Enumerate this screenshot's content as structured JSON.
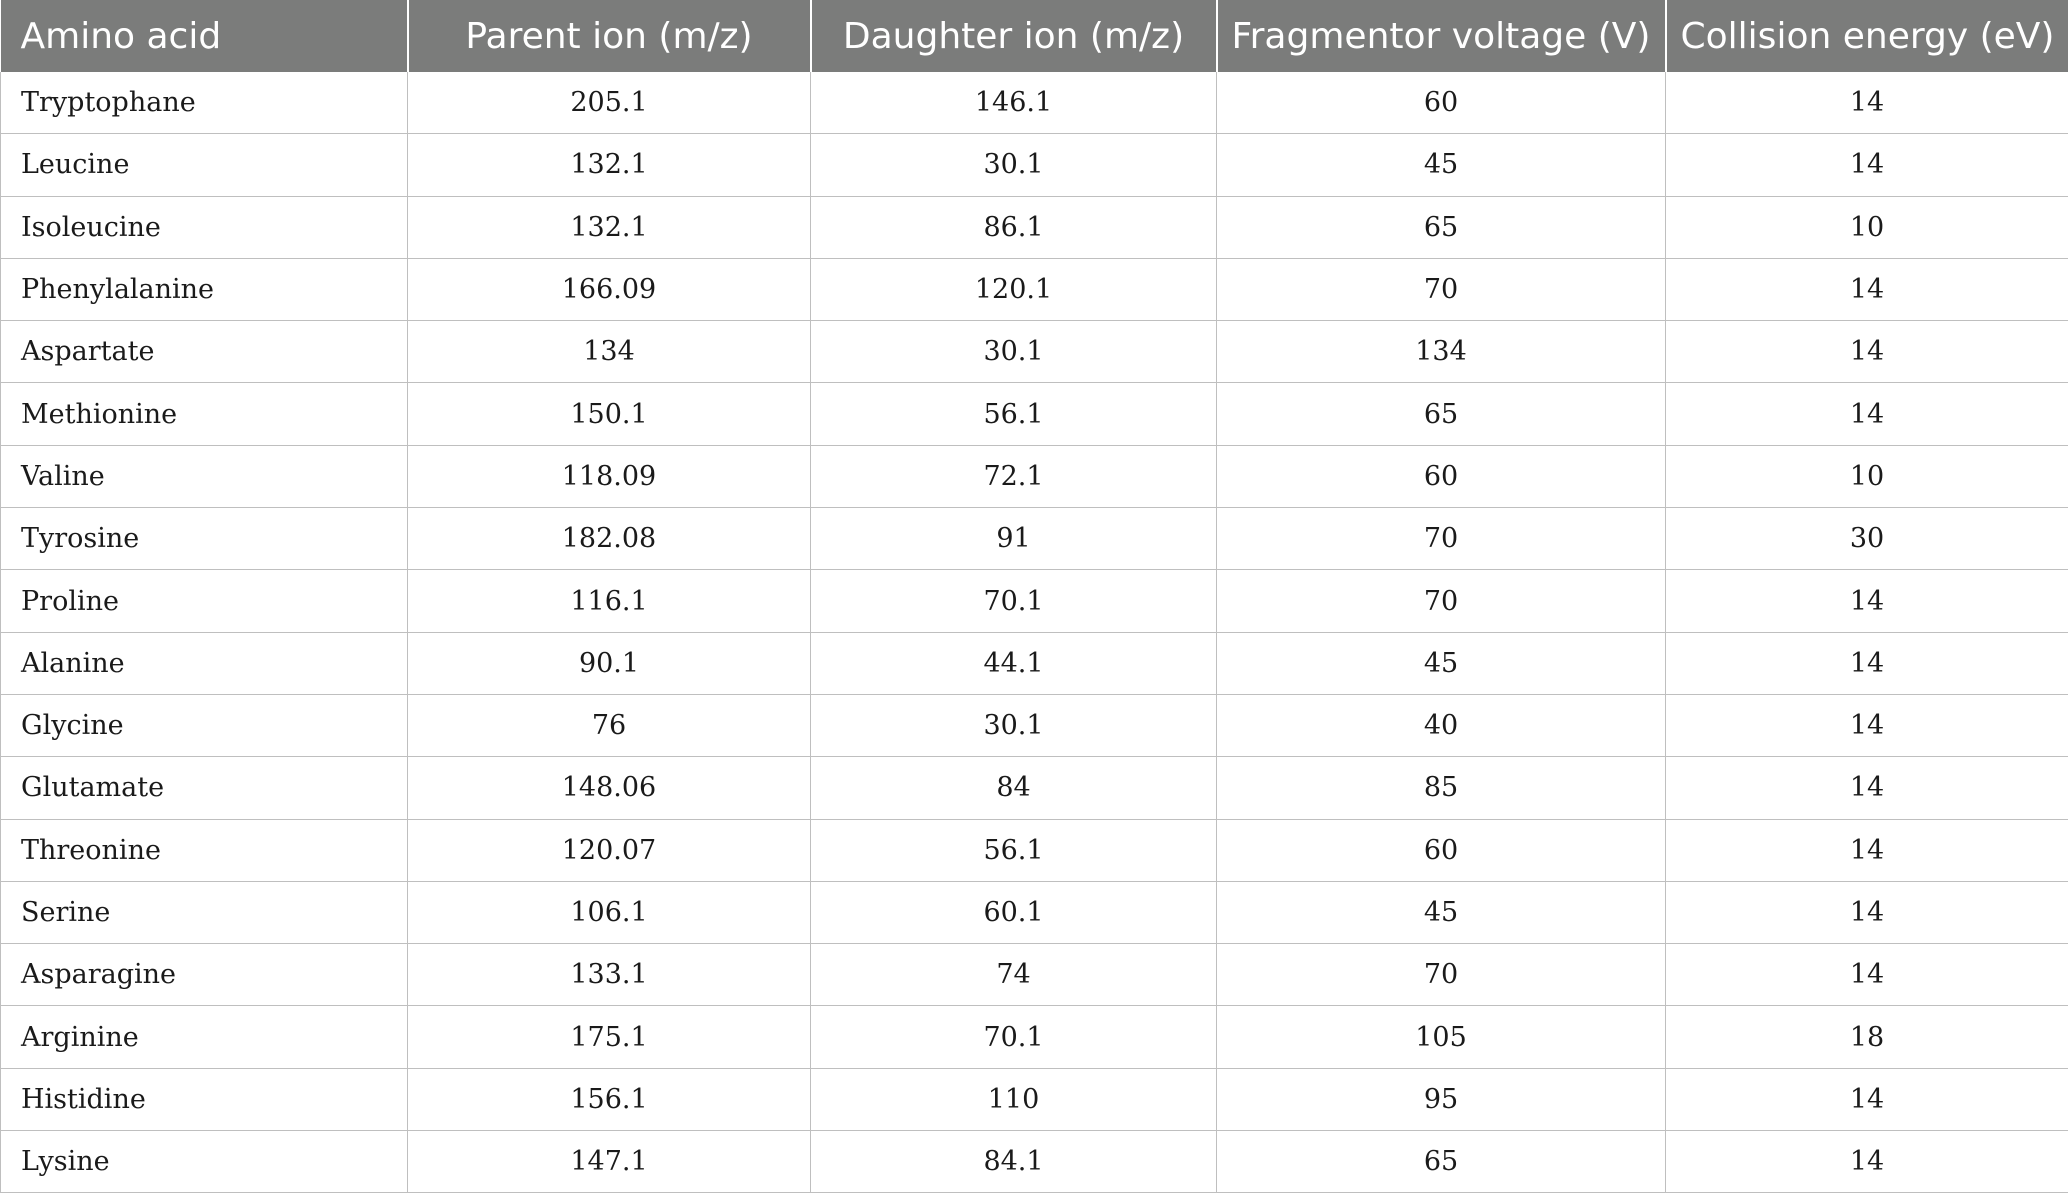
{
  "table": {
    "headers": [
      "Amino acid",
      "Parent ion (m/z)",
      "Daughter ion (m/z)",
      "Fragmentor voltage (V)",
      "Collision energy (eV)"
    ],
    "rows": [
      [
        "Tryptophane",
        "205.1",
        "146.1",
        "60",
        "14"
      ],
      [
        "Leucine",
        "132.1",
        "30.1",
        "45",
        "14"
      ],
      [
        "Isoleucine",
        "132.1",
        "86.1",
        "65",
        "10"
      ],
      [
        "Phenylalanine",
        "166.09",
        "120.1",
        "70",
        "14"
      ],
      [
        "Aspartate",
        "134",
        "30.1",
        "134",
        "14"
      ],
      [
        "Methionine",
        "150.1",
        "56.1",
        "65",
        "14"
      ],
      [
        "Valine",
        "118.09",
        "72.1",
        "60",
        "10"
      ],
      [
        "Tyrosine",
        "182.08",
        "91",
        "70",
        "30"
      ],
      [
        "Proline",
        "116.1",
        "70.1",
        "70",
        "14"
      ],
      [
        "Alanine",
        "90.1",
        "44.1",
        "45",
        "14"
      ],
      [
        "Glycine",
        "76",
        "30.1",
        "40",
        "14"
      ],
      [
        "Glutamate",
        "148.06",
        "84",
        "85",
        "14"
      ],
      [
        "Threonine",
        "120.07",
        "56.1",
        "60",
        "14"
      ],
      [
        "Serine",
        "106.1",
        "60.1",
        "45",
        "14"
      ],
      [
        "Asparagine",
        "133.1",
        "74",
        "70",
        "14"
      ],
      [
        "Arginine",
        "175.1",
        "70.1",
        "105",
        "18"
      ],
      [
        "Histidine",
        "156.1",
        "110",
        "95",
        "14"
      ],
      [
        "Lysine",
        "147.1",
        "84.1",
        "65",
        "14"
      ]
    ]
  }
}
